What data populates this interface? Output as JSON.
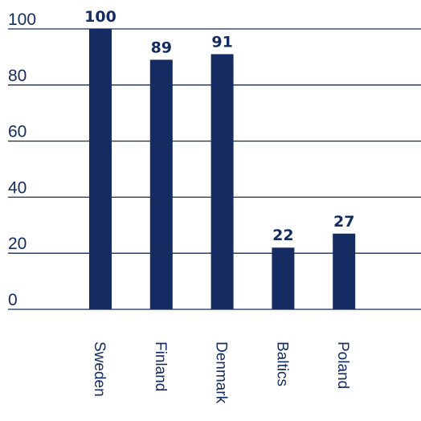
{
  "chart_data": {
    "type": "bar",
    "categories": [
      "Sweden",
      "Finland",
      "Denmark",
      "Baltics",
      "Poland"
    ],
    "values": [
      100,
      89,
      91,
      22,
      27
    ],
    "color": "#152c63",
    "ylim": [
      0,
      100
    ],
    "yticks": [
      0,
      20,
      40,
      60,
      80,
      100
    ],
    "grid": true
  }
}
